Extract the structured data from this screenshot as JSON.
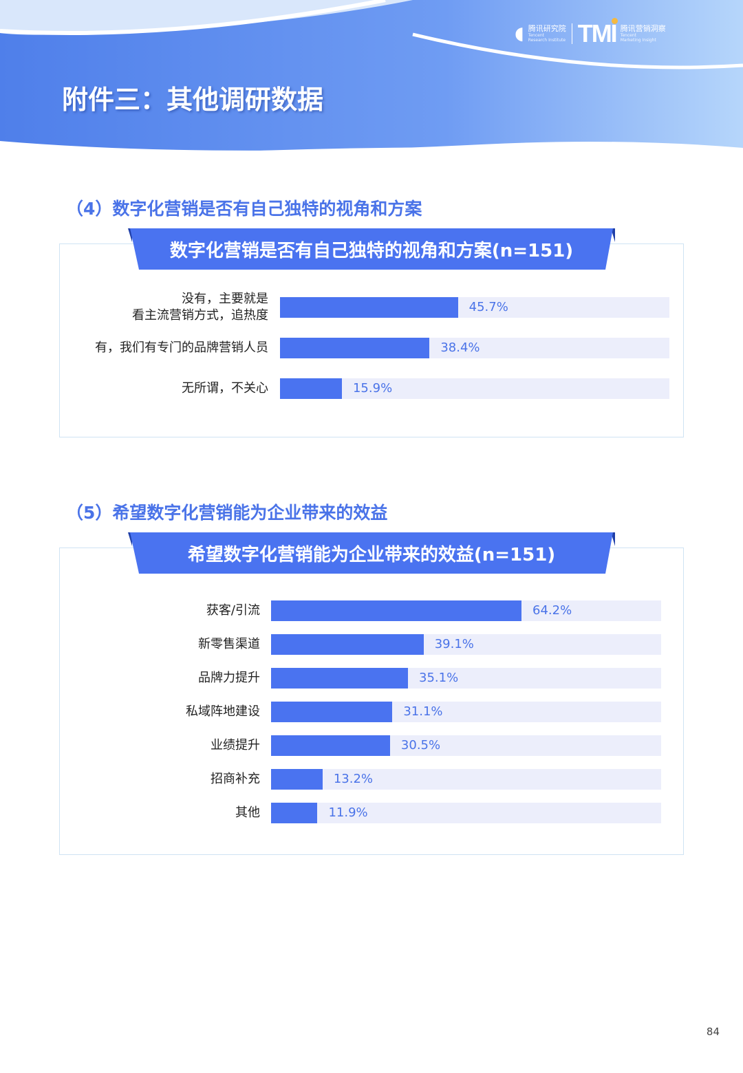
{
  "header": {
    "title": "附件三：其他调研数据",
    "logo_left_cn": "腾讯研究院",
    "logo_left_en1": "Tencent",
    "logo_left_en2": "Research Institute",
    "logo_mark": "TMI",
    "logo_right_cn": "腾讯营销洞察",
    "logo_right_en1": "Tencent",
    "logo_right_en2": "Marketing Insight"
  },
  "colors": {
    "bar": "#4a73f0",
    "track": "#eceefb",
    "accent": "#4a73e8"
  },
  "page_number": "84",
  "chart_data": [
    {
      "type": "bar",
      "orientation": "horizontal",
      "section_title": "（4）数字化营销是否有自己独特的视角和方案",
      "title": "数字化营销是否有自己独特的视角和方案(n=151)",
      "xlim": [
        0,
        100
      ],
      "categories": [
        [
          "没有，主要就是",
          "看主流营销方式，追热度"
        ],
        [
          "有，我们有专门的品牌营销人员"
        ],
        [
          "无所谓，不关心"
        ]
      ],
      "values": [
        45.7,
        38.4,
        15.9
      ],
      "labels": [
        "45.7%",
        "38.4%",
        "15.9%"
      ]
    },
    {
      "type": "bar",
      "orientation": "horizontal",
      "section_title": "（5）希望数字化营销能为企业带来的效益",
      "title": "希望数字化营销能为企业带来的效益(n=151)",
      "xlim": [
        0,
        100
      ],
      "categories": [
        [
          "获客/引流"
        ],
        [
          "新零售渠道"
        ],
        [
          "品牌力提升"
        ],
        [
          "私域阵地建设"
        ],
        [
          "业绩提升"
        ],
        [
          "招商补充"
        ],
        [
          "其他"
        ]
      ],
      "values": [
        64.2,
        39.1,
        35.1,
        31.1,
        30.5,
        13.2,
        11.9
      ],
      "labels": [
        "64.2%",
        "39.1%",
        "35.1%",
        "31.1%",
        "30.5%",
        "13.2%",
        "11.9%"
      ]
    }
  ]
}
